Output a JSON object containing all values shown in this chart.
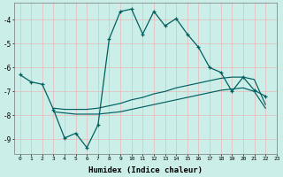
{
  "xlabel": "Humidex (Indice chaleur)",
  "bg_color": "#cceee8",
  "grid_color": "#e8b8b8",
  "line_color": "#006060",
  "xlim": [
    -0.5,
    23
  ],
  "ylim": [
    -9.6,
    -3.3
  ],
  "yticks": [
    -9,
    -8,
    -7,
    -6,
    -5,
    -4
  ],
  "xticks": [
    0,
    1,
    2,
    3,
    4,
    5,
    6,
    7,
    8,
    9,
    10,
    11,
    12,
    13,
    14,
    15,
    16,
    17,
    18,
    19,
    20,
    21,
    22,
    23
  ],
  "line1_x": [
    0,
    1,
    2,
    3,
    4,
    5,
    6,
    7,
    8,
    9,
    10,
    11,
    12,
    13,
    14,
    15,
    16,
    17,
    18,
    19,
    20,
    21,
    22
  ],
  "line1_y": [
    -6.3,
    -6.6,
    -6.7,
    -7.75,
    -8.95,
    -8.75,
    -9.35,
    -8.4,
    -4.8,
    -3.65,
    -3.55,
    -4.6,
    -3.65,
    -4.25,
    -3.95,
    -4.6,
    -5.15,
    -6.0,
    -6.2,
    -7.0,
    -6.4,
    -6.95,
    -7.2
  ],
  "line2_x": [
    3,
    4,
    5,
    6,
    7,
    8,
    9,
    10,
    11,
    12,
    13,
    14,
    15,
    16,
    17,
    18,
    19,
    20,
    21,
    22
  ],
  "line2_y": [
    -7.7,
    -7.75,
    -7.75,
    -7.75,
    -7.7,
    -7.6,
    -7.5,
    -7.35,
    -7.25,
    -7.1,
    -7.0,
    -6.85,
    -6.75,
    -6.65,
    -6.55,
    -6.45,
    -6.4,
    -6.4,
    -6.5,
    -7.55
  ],
  "line3_x": [
    3,
    4,
    5,
    6,
    7,
    8,
    9,
    10,
    11,
    12,
    13,
    14,
    15,
    16,
    17,
    18,
    19,
    20,
    21,
    22
  ],
  "line3_y": [
    -7.85,
    -7.9,
    -7.95,
    -7.95,
    -7.95,
    -7.9,
    -7.85,
    -7.75,
    -7.65,
    -7.55,
    -7.45,
    -7.35,
    -7.25,
    -7.15,
    -7.05,
    -6.95,
    -6.9,
    -6.85,
    -7.0,
    -7.7
  ]
}
